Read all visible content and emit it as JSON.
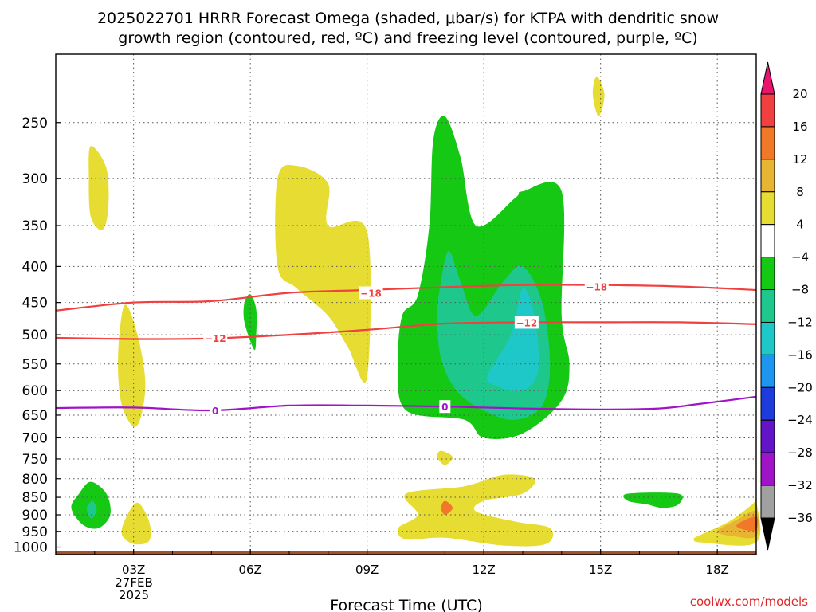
{
  "title_line1": "2025022701 HRRR Forecast Omega (shaded, μbar/s) for KTPA with dendritic snow",
  "title_line2": "growth region (contoured, red, ºC) and freezing level (contoured, purple, ºC)",
  "credit": "coolwx.com/models",
  "chart_data": {
    "type": "time-height contour",
    "xlabel": "Forecast Time (UTC)",
    "x_ticks": [
      "03Z",
      "06Z",
      "09Z",
      "12Z",
      "15Z",
      "18Z"
    ],
    "x_date_lines": [
      "27FEB",
      "2025"
    ],
    "x_range_hours": [
      1,
      19
    ],
    "y_ticks": [
      250,
      300,
      350,
      400,
      450,
      500,
      550,
      600,
      650,
      700,
      750,
      800,
      850,
      900,
      950,
      1000
    ],
    "y_range_hpa": [
      200,
      1025
    ],
    "y_scale": "log-pressure",
    "grid": "dotted",
    "colorbar": {
      "labels": [
        "20",
        "16",
        "12",
        "8",
        "4",
        "-4",
        "-8",
        "-12",
        "-16",
        "-20",
        "-24",
        "-28",
        "-32",
        "-36"
      ],
      "colors": [
        "#e8146e",
        "#f04040",
        "#f07828",
        "#e8b434",
        "#e6dc32",
        "#ffffff",
        "#14c814",
        "#1ec88c",
        "#1ec8c8",
        "#1e96f0",
        "#1e3cdc",
        "#6414c8",
        "#a014c8",
        "#a0a0a0",
        "#000000"
      ]
    },
    "contours": [
      {
        "label": "-18",
        "color": "#f04040",
        "points": [
          [
            1,
            462
          ],
          [
            3,
            450
          ],
          [
            5,
            448
          ],
          [
            7,
            436
          ],
          [
            9,
            432
          ],
          [
            11,
            428
          ],
          [
            13,
            425
          ],
          [
            15,
            425
          ],
          [
            17,
            427
          ],
          [
            19,
            432
          ]
        ]
      },
      {
        "label": "-12",
        "color": "#f04040",
        "points": [
          [
            1,
            505
          ],
          [
            3,
            507
          ],
          [
            5,
            506
          ],
          [
            7,
            500
          ],
          [
            9,
            492
          ],
          [
            11,
            482
          ],
          [
            13,
            480
          ],
          [
            15,
            480
          ],
          [
            17,
            480
          ],
          [
            19,
            483
          ]
        ]
      },
      {
        "label": "0",
        "color": "#a014c8",
        "points": [
          [
            1,
            635
          ],
          [
            3,
            634
          ],
          [
            5,
            640
          ],
          [
            7,
            630
          ],
          [
            9,
            630
          ],
          [
            11,
            632
          ],
          [
            13,
            636
          ],
          [
            15,
            638
          ],
          [
            16.5,
            636
          ],
          [
            17.5,
            627
          ],
          [
            19,
            612
          ]
        ]
      }
    ],
    "contour_label_positions": [
      {
        "label": "-18",
        "x": 9.1,
        "y": 436
      },
      {
        "label": "-18",
        "x": 14.9,
        "y": 427
      },
      {
        "label": "-12",
        "x": 5.1,
        "y": 505
      },
      {
        "label": "-12",
        "x": 13.1,
        "y": 480
      },
      {
        "label": "0",
        "x": 5.1,
        "y": 640
      },
      {
        "label": "0",
        "x": 11.0,
        "y": 632
      }
    ],
    "omega_regions": [
      {
        "color": "#e6dc32",
        "points": [
          [
            1.9,
            270
          ],
          [
            2.3,
            290
          ],
          [
            2.35,
            330
          ],
          [
            2.2,
            355
          ],
          [
            1.9,
            340
          ],
          [
            1.85,
            300
          ]
        ]
      },
      {
        "color": "#e6dc32",
        "points": [
          [
            2.8,
            453
          ],
          [
            3.1,
            500
          ],
          [
            3.3,
            580
          ],
          [
            3.2,
            650
          ],
          [
            3,
            675
          ],
          [
            2.7,
            630
          ],
          [
            2.6,
            560
          ],
          [
            2.65,
            490
          ]
        ]
      },
      {
        "color": "#14c814",
        "points": [
          [
            6,
            438
          ],
          [
            6.15,
            460
          ],
          [
            6.15,
            500
          ],
          [
            6.1,
            525
          ],
          [
            5.85,
            480
          ],
          [
            5.85,
            450
          ]
        ]
      },
      {
        "color": "#e6dc32",
        "points": [
          [
            7.2,
            288
          ],
          [
            8,
            305
          ],
          [
            8,
            350
          ],
          [
            9,
            357
          ],
          [
            9,
            575
          ],
          [
            8.5,
            520
          ],
          [
            8,
            470
          ],
          [
            7.2,
            430
          ],
          [
            6.7,
            400
          ],
          [
            6.7,
            300
          ]
        ]
      },
      {
        "color": "#e6dc32",
        "points": [
          [
            14.9,
            215
          ],
          [
            15.1,
            228
          ],
          [
            14.95,
            245
          ],
          [
            14.8,
            228
          ]
        ]
      },
      {
        "color": "#14c814",
        "points": [
          [
            11,
            245
          ],
          [
            11.4,
            280
          ],
          [
            11.8,
            350
          ],
          [
            12.8,
            320
          ],
          [
            13,
            313
          ],
          [
            14,
            313
          ],
          [
            14,
            470
          ],
          [
            14.2,
            550
          ],
          [
            14,
            620
          ],
          [
            13,
            690
          ],
          [
            12,
            700
          ],
          [
            11.5,
            660
          ],
          [
            10,
            640
          ],
          [
            9.8,
            550
          ],
          [
            9.9,
            470
          ],
          [
            10.3,
            440
          ],
          [
            10.6,
            350
          ],
          [
            10.7,
            265
          ]
        ]
      },
      {
        "color": "#1ec88c",
        "points": [
          [
            11.1,
            380
          ],
          [
            11.4,
            420
          ],
          [
            11.8,
            470
          ],
          [
            12.5,
            420
          ],
          [
            13,
            400
          ],
          [
            13.5,
            450
          ],
          [
            13.7,
            550
          ],
          [
            13.5,
            630
          ],
          [
            12.8,
            660
          ],
          [
            12,
            640
          ],
          [
            11.3,
            600
          ],
          [
            10.9,
            540
          ],
          [
            10.8,
            470
          ],
          [
            10.9,
            420
          ]
        ]
      },
      {
        "color": "#1ec8c8",
        "points": [
          [
            13,
            430
          ],
          [
            13.3,
            470
          ],
          [
            13.4,
            560
          ],
          [
            13,
            600
          ],
          [
            12.3,
            590
          ],
          [
            12.1,
            570
          ],
          [
            12.7,
            500
          ]
        ]
      },
      {
        "color": "#e6dc32",
        "points": [
          [
            10.9,
            730
          ],
          [
            11.2,
            745
          ],
          [
            11,
            765
          ],
          [
            10.8,
            745
          ]
        ]
      },
      {
        "color": "#14c814",
        "points": [
          [
            1.9,
            808
          ],
          [
            2.3,
            840
          ],
          [
            2.4,
            900
          ],
          [
            2.1,
            940
          ],
          [
            1.7,
            930
          ],
          [
            1.4,
            880
          ],
          [
            1.6,
            840
          ]
        ]
      },
      {
        "color": "#1ec88c",
        "points": [
          [
            1.95,
            860
          ],
          [
            2.05,
            890
          ],
          [
            1.9,
            910
          ],
          [
            1.8,
            880
          ]
        ]
      },
      {
        "color": "#e6dc32",
        "points": [
          [
            3.1,
            865
          ],
          [
            3.4,
            920
          ],
          [
            3.4,
            980
          ],
          [
            3,
            990
          ],
          [
            2.7,
            960
          ],
          [
            2.8,
            910
          ]
        ]
      },
      {
        "color": "#e6dc32",
        "points": [
          [
            10,
            840
          ],
          [
            11.5,
            820
          ],
          [
            12.5,
            790
          ],
          [
            13.3,
            800
          ],
          [
            13,
            840
          ],
          [
            12,
            860
          ],
          [
            11.8,
            890
          ],
          [
            12.8,
            920
          ],
          [
            13.7,
            940
          ],
          [
            13.6,
            990
          ],
          [
            12.5,
            995
          ],
          [
            11,
            970
          ],
          [
            10,
            975
          ],
          [
            9.8,
            940
          ],
          [
            10.3,
            900
          ]
        ]
      },
      {
        "color": "#f07828",
        "points": [
          [
            11,
            860
          ],
          [
            11.2,
            880
          ],
          [
            11,
            900
          ],
          [
            10.9,
            880
          ]
        ]
      },
      {
        "color": "#14c814",
        "points": [
          [
            15.7,
            840
          ],
          [
            17,
            840
          ],
          [
            17,
            870
          ],
          [
            16.6,
            880
          ],
          [
            16.2,
            870
          ],
          [
            15.7,
            860
          ]
        ]
      },
      {
        "color": "#e6dc32",
        "points": [
          [
            17.5,
            965
          ],
          [
            18.3,
            920
          ],
          [
            18.9,
            870
          ],
          [
            19,
            860
          ],
          [
            19,
            985
          ],
          [
            17.6,
            985
          ],
          [
            17.4,
            975
          ]
        ]
      },
      {
        "color": "#e8b434",
        "points": [
          [
            18,
            950
          ],
          [
            18.5,
            915
          ],
          [
            19,
            890
          ],
          [
            19,
            965
          ],
          [
            18.4,
            965
          ]
        ]
      },
      {
        "color": "#f07828",
        "points": [
          [
            18.5,
            930
          ],
          [
            19,
            905
          ],
          [
            19,
            945
          ],
          [
            18.7,
            945
          ]
        ]
      }
    ],
    "terrain": {
      "color": "#a0522d",
      "from_hpa": 1012,
      "to_hpa": 1025
    }
  }
}
